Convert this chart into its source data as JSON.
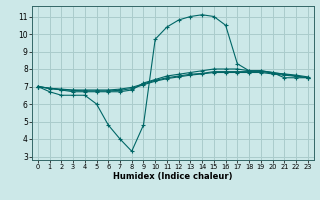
{
  "xlabel": "Humidex (Indice chaleur)",
  "background_color": "#cce8e8",
  "grid_color": "#aacccc",
  "line_color": "#006666",
  "xlim": [
    -0.5,
    23.5
  ],
  "ylim": [
    2.8,
    11.6
  ],
  "yticks": [
    3,
    4,
    5,
    6,
    7,
    8,
    9,
    10,
    11
  ],
  "xticks": [
    0,
    1,
    2,
    3,
    4,
    5,
    6,
    7,
    8,
    9,
    10,
    11,
    12,
    13,
    14,
    15,
    16,
    17,
    18,
    19,
    20,
    21,
    22,
    23
  ],
  "series": [
    [
      7.0,
      6.7,
      6.5,
      6.5,
      6.5,
      6.0,
      4.8,
      4.0,
      3.3,
      4.8,
      9.7,
      10.4,
      10.8,
      11.0,
      11.1,
      11.0,
      10.5,
      8.3,
      7.9,
      7.9,
      7.8,
      7.5,
      7.5,
      7.5
    ],
    [
      7.0,
      6.9,
      6.8,
      6.7,
      6.7,
      6.7,
      6.7,
      6.7,
      6.8,
      7.2,
      7.4,
      7.6,
      7.7,
      7.8,
      7.9,
      8.0,
      8.0,
      8.0,
      7.9,
      7.9,
      7.8,
      7.7,
      7.6,
      7.5
    ],
    [
      7.0,
      6.9,
      6.85,
      6.8,
      6.8,
      6.8,
      6.8,
      6.85,
      6.95,
      7.15,
      7.35,
      7.5,
      7.6,
      7.7,
      7.75,
      7.85,
      7.85,
      7.85,
      7.85,
      7.85,
      7.78,
      7.72,
      7.65,
      7.55
    ],
    [
      7.0,
      6.88,
      6.82,
      6.78,
      6.75,
      6.75,
      6.75,
      6.78,
      6.88,
      7.1,
      7.3,
      7.45,
      7.55,
      7.65,
      7.72,
      7.8,
      7.8,
      7.8,
      7.8,
      7.8,
      7.72,
      7.65,
      7.58,
      7.5
    ]
  ]
}
